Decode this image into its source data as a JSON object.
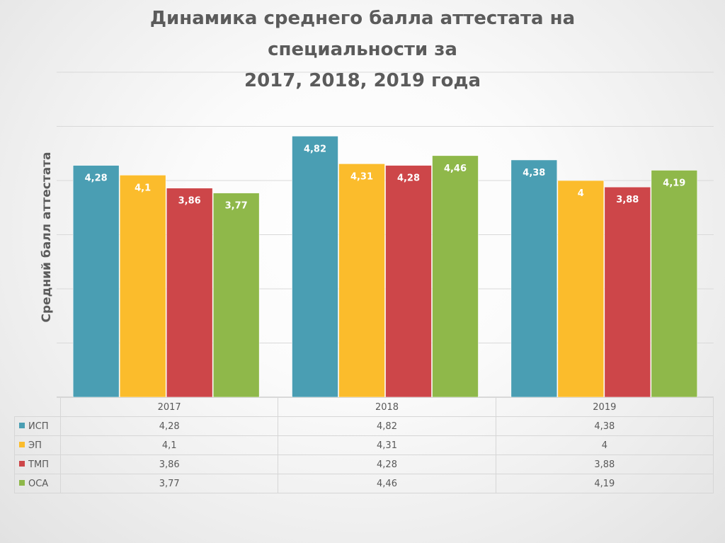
{
  "title_line1": "Динамика среднего балла аттестата на специальности за",
  "title_line2": "2017, 2018, 2019 года",
  "chart_data": {
    "type": "bar",
    "title": "Динамика среднего балла аттестата на специальности за 2017, 2018, 2019 года",
    "ylabel": "Средний балл аттестата",
    "xlabel": "",
    "categories": [
      "2017",
      "2018",
      "2019"
    ],
    "ylim": [
      0,
      6
    ],
    "grid": true,
    "legend": "data-table-below",
    "series": [
      {
        "name": "ИСП",
        "color": "#4a9eb3",
        "values": [
          4.28,
          4.82,
          4.38
        ],
        "labels": [
          "4,28",
          "4,82",
          "4,38"
        ]
      },
      {
        "name": "ЭП",
        "color": "#fbbc2c",
        "values": [
          4.1,
          4.31,
          4
        ],
        "labels": [
          "4,1",
          "4,31",
          "4"
        ]
      },
      {
        "name": "ТМП",
        "color": "#cd4649",
        "values": [
          3.86,
          4.28,
          3.88
        ],
        "labels": [
          "3,86",
          "4,28",
          "3,88"
        ]
      },
      {
        "name": "ОСА",
        "color": "#8fb84a",
        "values": [
          3.77,
          4.46,
          4.19
        ],
        "labels": [
          "3,77",
          "4,46",
          "4,19"
        ]
      }
    ]
  }
}
